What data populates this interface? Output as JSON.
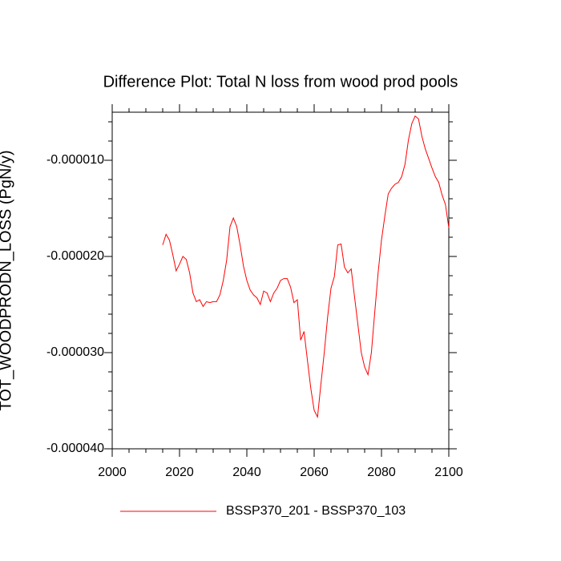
{
  "chart_data": {
    "type": "line",
    "title": "Difference Plot: Total N loss from wood prod pools",
    "y_label": "TOT_WOODPRODN_LOSS  (PgN/y)",
    "x": [
      2015,
      2016,
      2017,
      2018,
      2019,
      2020,
      2021,
      2022,
      2023,
      2024,
      2025,
      2026,
      2027,
      2028,
      2029,
      2030,
      2031,
      2032,
      2033,
      2034,
      2035,
      2036,
      2037,
      2038,
      2039,
      2040,
      2041,
      2042,
      2043,
      2044,
      2045,
      2046,
      2047,
      2048,
      2049,
      2050,
      2051,
      2052,
      2053,
      2054,
      2055,
      2056,
      2057,
      2058,
      2059,
      2060,
      2061,
      2062,
      2063,
      2064,
      2065,
      2066,
      2067,
      2068,
      2069,
      2070,
      2071,
      2072,
      2073,
      2074,
      2075,
      2076,
      2077,
      2078,
      2079,
      2080,
      2081,
      2082,
      2083,
      2084,
      2085,
      2086,
      2087,
      2088,
      2089,
      2090,
      2091,
      2092,
      2093,
      2094,
      2095,
      2096,
      2097,
      2098,
      2099,
      2100
    ],
    "series": [
      {
        "name": "BSSP370_201 - BSSP370_103",
        "color": "#ff0000",
        "values": [
          -1.88e-05,
          -1.77e-05,
          -1.83e-05,
          -1.98e-05,
          -2.15e-05,
          -2.08e-05,
          -2e-05,
          -2.03e-05,
          -2.17e-05,
          -2.38e-05,
          -2.47e-05,
          -2.45e-05,
          -2.52e-05,
          -2.47e-05,
          -2.48e-05,
          -2.47e-05,
          -2.47e-05,
          -2.4e-05,
          -2.25e-05,
          -2.04e-05,
          -1.69e-05,
          -1.6e-05,
          -1.69e-05,
          -1.88e-05,
          -2.1e-05,
          -2.25e-05,
          -2.35e-05,
          -2.4e-05,
          -2.43e-05,
          -2.5e-05,
          -2.36e-05,
          -2.38e-05,
          -2.47e-05,
          -2.38e-05,
          -2.33e-05,
          -2.25e-05,
          -2.23e-05,
          -2.23e-05,
          -2.32e-05,
          -2.48e-05,
          -2.45e-05,
          -2.87e-05,
          -2.78e-05,
          -3.08e-05,
          -3.37e-05,
          -3.6e-05,
          -3.67e-05,
          -3.33e-05,
          -3e-05,
          -2.63e-05,
          -2.33e-05,
          -2.21e-05,
          -1.88e-05,
          -1.87e-05,
          -2.11e-05,
          -2.17e-05,
          -2.13e-05,
          -2.42e-05,
          -2.71e-05,
          -3e-05,
          -3.15e-05,
          -3.23e-05,
          -3e-05,
          -2.58e-05,
          -2.17e-05,
          -1.83e-05,
          -1.58e-05,
          -1.35e-05,
          -1.29e-05,
          -1.25e-05,
          -1.23e-05,
          -1.17e-05,
          -1.04e-05,
          -7.9e-06,
          -6.2e-06,
          -5.4e-06,
          -5.7e-06,
          -7.5e-06,
          -8.8e-06,
          -9.8e-06,
          -1.08e-05,
          -1.17e-05,
          -1.23e-05,
          -1.36e-05,
          -1.46e-05,
          -1.7e-05
        ]
      }
    ],
    "xlim": [
      2000,
      2100
    ],
    "xticks": [
      2000,
      2020,
      2040,
      2060,
      2080,
      2100
    ],
    "ylim": [
      -4e-05,
      -5e-06
    ],
    "yticks": [
      {
        "value": -4e-05,
        "label": "-0.000040"
      },
      {
        "value": -3e-05,
        "label": "-0.000030"
      },
      {
        "value": -2e-05,
        "label": "-0.000020"
      },
      {
        "value": -1e-05,
        "label": "-0.000010"
      }
    ],
    "legend": "bottom"
  }
}
